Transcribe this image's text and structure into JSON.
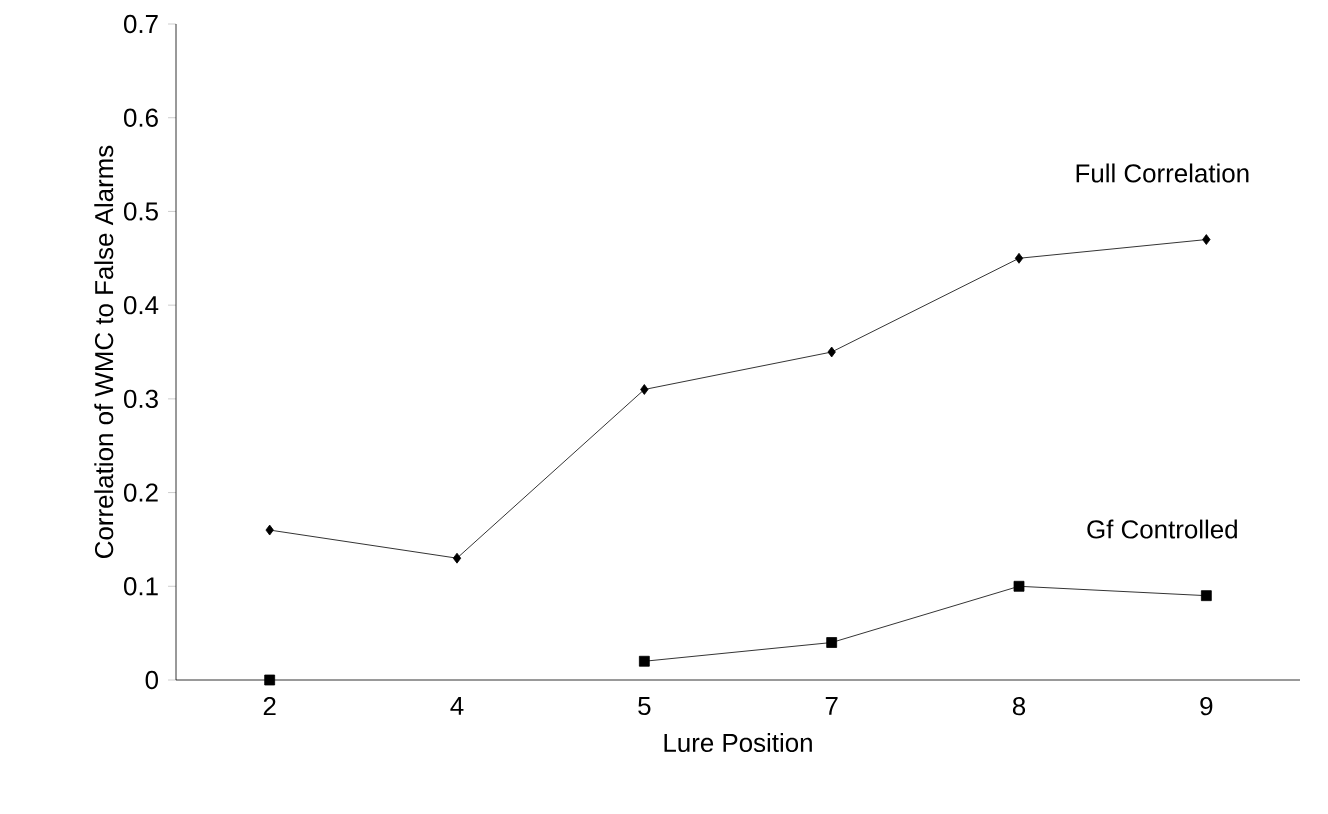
{
  "chart_data": {
    "type": "line",
    "xlabel": "Lure Position",
    "ylabel": "Correlation of WMC to False Alarms",
    "categories": [
      "2",
      "4",
      "5",
      "7",
      "8",
      "9"
    ],
    "series": [
      {
        "name": "Full Correlation",
        "color": "#000000",
        "marker": "diamond",
        "values": [
          0.16,
          0.13,
          0.31,
          0.35,
          0.45,
          0.47
        ]
      },
      {
        "name": "Gf Controlled",
        "color": "#000000",
        "marker": "square",
        "values": [
          0.0,
          null,
          0.02,
          0.04,
          0.1,
          0.09
        ]
      }
    ],
    "ylim": [
      0,
      0.7
    ],
    "yticks": [
      0,
      0.1,
      0.2,
      0.3,
      0.4,
      0.5,
      0.6,
      0.7
    ],
    "grid": false,
    "line_style": "solid"
  }
}
